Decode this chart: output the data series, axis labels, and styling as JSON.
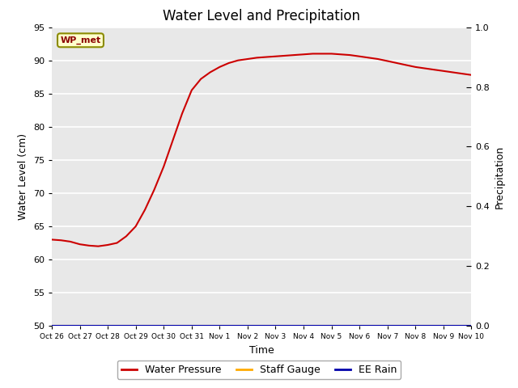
{
  "title": "Water Level and Precipitation",
  "xlabel": "Time",
  "ylabel_left": "Water Level (cm)",
  "ylabel_right": "Precipitation",
  "ylim_left": [
    50,
    95
  ],
  "ylim_right": [
    0.0,
    1.0
  ],
  "yticks_left": [
    50,
    55,
    60,
    65,
    70,
    75,
    80,
    85,
    90,
    95
  ],
  "yticks_right": [
    0.0,
    0.2,
    0.4,
    0.6,
    0.8,
    1.0
  ],
  "x_tick_labels": [
    "Oct 26",
    "Oct 27",
    "Oct 28",
    "Oct 29",
    "Oct 30",
    "Oct 31",
    "Nov 1",
    "Nov 2",
    "Nov 3",
    "Nov 4",
    "Nov 5",
    "Nov 6",
    "Nov 7",
    "Nov 8",
    "Nov 9",
    "Nov 10"
  ],
  "water_pressure_x": [
    0,
    0.33,
    0.66,
    1,
    1.33,
    1.66,
    2,
    2.33,
    2.66,
    3,
    3.33,
    3.66,
    4,
    4.33,
    4.66,
    5,
    5.33,
    5.66,
    6,
    6.33,
    6.66,
    7,
    7.33,
    7.66,
    8,
    8.33,
    8.66,
    9,
    9.33,
    9.66,
    10,
    10.33,
    10.66,
    11,
    11.33,
    11.66,
    12,
    12.33,
    12.66,
    13,
    13.33,
    13.66,
    14,
    14.33,
    14.66,
    15
  ],
  "water_pressure_y": [
    63.0,
    62.9,
    62.7,
    62.3,
    62.1,
    62.0,
    62.2,
    62.5,
    63.5,
    65.0,
    67.5,
    70.5,
    74.0,
    78.0,
    82.0,
    85.5,
    87.2,
    88.2,
    89.0,
    89.6,
    90.0,
    90.2,
    90.4,
    90.5,
    90.6,
    90.7,
    90.8,
    90.9,
    91.0,
    91.0,
    91.0,
    90.9,
    90.8,
    90.6,
    90.4,
    90.2,
    89.9,
    89.6,
    89.3,
    89.0,
    88.8,
    88.6,
    88.4,
    88.2,
    88.0,
    87.8
  ],
  "water_pressure_color": "#cc0000",
  "staff_gauge_color": "#ffaa00",
  "ee_rain_color": "#0000aa",
  "annotation_text": "WP_met",
  "bg_color": "#e8e8e8",
  "grid_color": "#ffffff",
  "legend_labels": [
    "Water Pressure",
    "Staff Gauge",
    "EE Rain"
  ],
  "title_fontsize": 12
}
